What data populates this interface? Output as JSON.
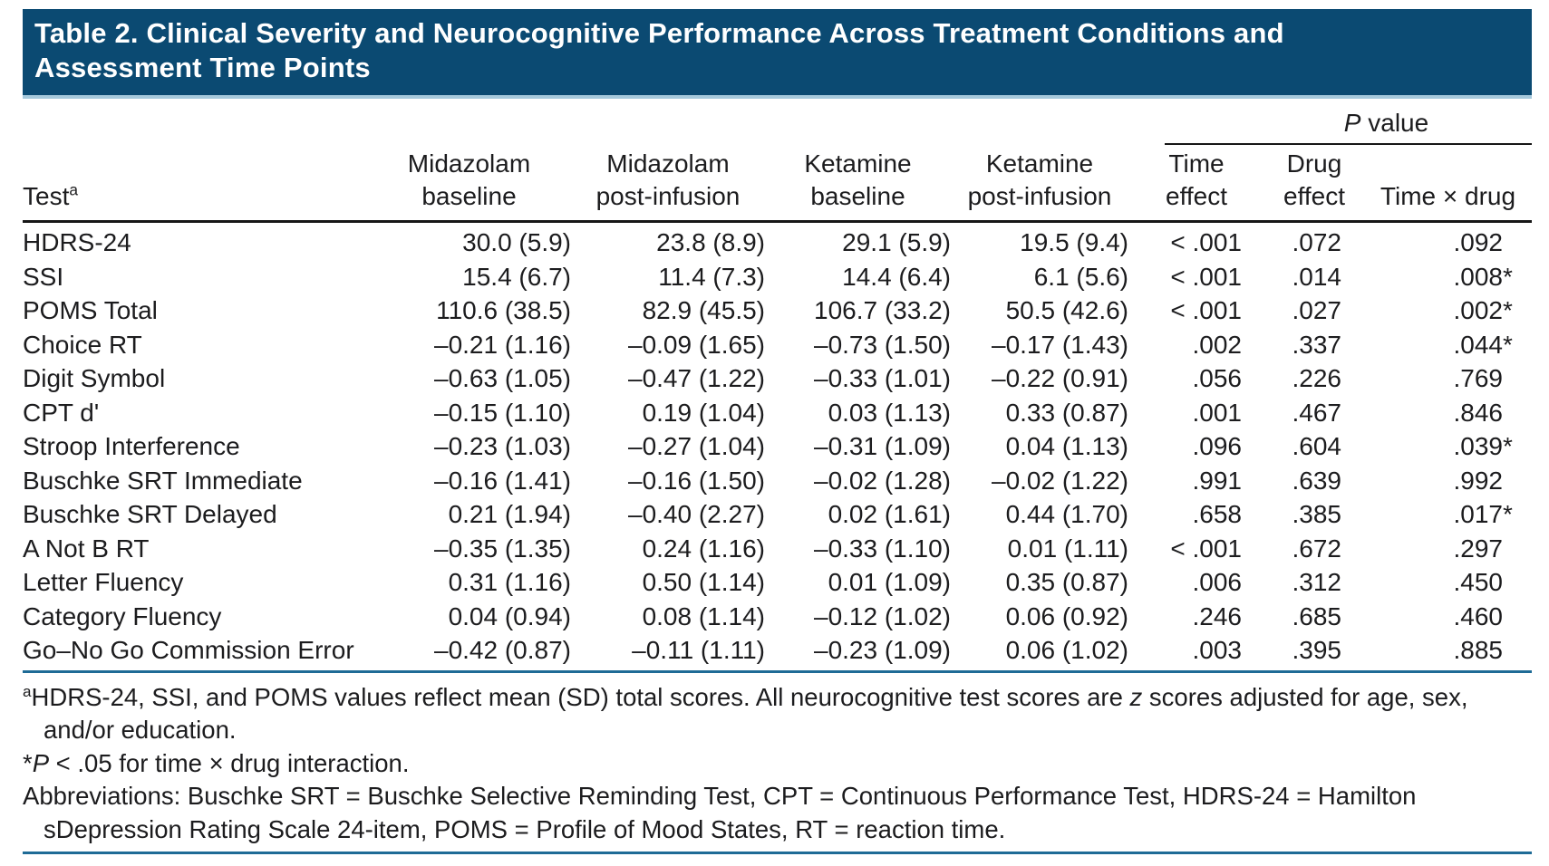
{
  "colors": {
    "banner_bg": "#0b4a72",
    "banner_underline": "#a6c9dc",
    "rule_blue": "#1e6b96",
    "rule_black": "#161616",
    "text": "#1c1c1e",
    "title_text": "#ffffff"
  },
  "title": {
    "line1": "Table 2. Clinical Severity and Neurocognitive Performance Across Treatment Conditions and",
    "line2": "Assessment Time Points"
  },
  "header": {
    "p_group": {
      "italic": "P",
      "rest": " value"
    },
    "columns": [
      {
        "line1": "",
        "line2": "Test",
        "sup": "a"
      },
      {
        "line1": "Midazolam",
        "line2": "baseline"
      },
      {
        "line1": "Midazolam",
        "line2": "post-infusion"
      },
      {
        "line1": "Ketamine",
        "line2": "baseline"
      },
      {
        "line1": "Ketamine",
        "line2": "post-infusion"
      },
      {
        "line1": "Time",
        "line2": "effect"
      },
      {
        "line1": "Drug",
        "line2": "effect"
      },
      {
        "line1": "",
        "line2": "Time × drug"
      }
    ]
  },
  "rows": [
    {
      "test": "HDRS-24",
      "m_base": "30.0 (5.9)",
      "m_post": "23.8 (8.9)",
      "k_base": "29.1 (5.9)",
      "k_post": "19.5 (9.4)",
      "time": "< .001",
      "drug": ".072",
      "txd": ".092",
      "star": ""
    },
    {
      "test": "SSI",
      "m_base": "15.4 (6.7)",
      "m_post": "11.4 (7.3)",
      "k_base": "14.4 (6.4)",
      "k_post": "6.1 (5.6)",
      "time": "< .001",
      "drug": ".014",
      "txd": ".008",
      "star": "*"
    },
    {
      "test": "POMS Total",
      "m_base": "110.6 (38.5)",
      "m_post": "82.9 (45.5)",
      "k_base": "106.7 (33.2)",
      "k_post": "50.5 (42.6)",
      "time": "< .001",
      "drug": ".027",
      "txd": ".002",
      "star": "*"
    },
    {
      "test": "Choice RT",
      "m_base": "–0.21 (1.16)",
      "m_post": "–0.09 (1.65)",
      "k_base": "–0.73 (1.50)",
      "k_post": "–0.17 (1.43)",
      "time": ".002",
      "drug": ".337",
      "txd": ".044",
      "star": "*"
    },
    {
      "test": "Digit Symbol",
      "m_base": "–0.63 (1.05)",
      "m_post": "–0.47 (1.22)",
      "k_base": "–0.33 (1.01)",
      "k_post": "–0.22 (0.91)",
      "time": ".056",
      "drug": ".226",
      "txd": ".769",
      "star": ""
    },
    {
      "test": "CPT d'",
      "m_base": "–0.15 (1.10)",
      "m_post": "0.19 (1.04)",
      "k_base": "0.03 (1.13)",
      "k_post": "0.33 (0.87)",
      "time": ".001",
      "drug": ".467",
      "txd": ".846",
      "star": ""
    },
    {
      "test": "Stroop Interference",
      "m_base": "–0.23 (1.03)",
      "m_post": "–0.27 (1.04)",
      "k_base": "–0.31 (1.09)",
      "k_post": "0.04 (1.13)",
      "time": ".096",
      "drug": ".604",
      "txd": ".039",
      "star": "*"
    },
    {
      "test": "Buschke SRT Immediate",
      "m_base": "–0.16 (1.41)",
      "m_post": "–0.16 (1.50)",
      "k_base": "–0.02 (1.28)",
      "k_post": "–0.02 (1.22)",
      "time": ".991",
      "drug": ".639",
      "txd": ".992",
      "star": ""
    },
    {
      "test": "Buschke SRT Delayed",
      "m_base": "0.21 (1.94)",
      "m_post": "–0.40 (2.27)",
      "k_base": "0.02 (1.61)",
      "k_post": "0.44 (1.70)",
      "time": ".658",
      "drug": ".385",
      "txd": ".017",
      "star": "*"
    },
    {
      "test": "A Not B RT",
      "m_base": "–0.35 (1.35)",
      "m_post": "0.24 (1.16)",
      "k_base": "–0.33 (1.10)",
      "k_post": "0.01 (1.11)",
      "time": "< .001",
      "drug": ".672",
      "txd": ".297",
      "star": ""
    },
    {
      "test": "Letter Fluency",
      "m_base": "0.31 (1.16)",
      "m_post": "0.50 (1.14)",
      "k_base": "0.01 (1.09)",
      "k_post": "0.35 (0.87)",
      "time": ".006",
      "drug": ".312",
      "txd": ".450",
      "star": ""
    },
    {
      "test": "Category Fluency",
      "m_base": "0.04 (0.94)",
      "m_post": "0.08 (1.14)",
      "k_base": "–0.12 (1.02)",
      "k_post": "0.06 (0.92)",
      "time": ".246",
      "drug": ".685",
      "txd": ".460",
      "star": ""
    },
    {
      "test": "Go–No Go Commission Error",
      "m_base": "–0.42 (0.87)",
      "m_post": "–0.11 (1.11)",
      "k_base": "–0.23 (1.09)",
      "k_post": "0.06 (1.02)",
      "time": ".003",
      "drug": ".395",
      "txd": ".885",
      "star": ""
    }
  ],
  "footnotes": {
    "fn1_sup": "a",
    "fn1_a": "HDRS-24, SSI, and POMS values reflect mean (SD) total scores. All neurocognitive test scores are ",
    "fn1_z": "z",
    "fn1_b": " scores adjusted for age, sex,",
    "fn1_cont": "and/or education.",
    "fn2_star": "*",
    "fn2_p": "P",
    "fn2_rest": " < .05 for time × drug interaction.",
    "fn3_a": "Abbreviations: Buschke SRT = Buschke Selective Reminding Test, CPT = Continuous Performance Test, HDRS-24 = Hamilton",
    "fn3_cont": "sDepression Rating Scale 24-item, POMS = Profile of Mood States, RT = reaction time."
  }
}
